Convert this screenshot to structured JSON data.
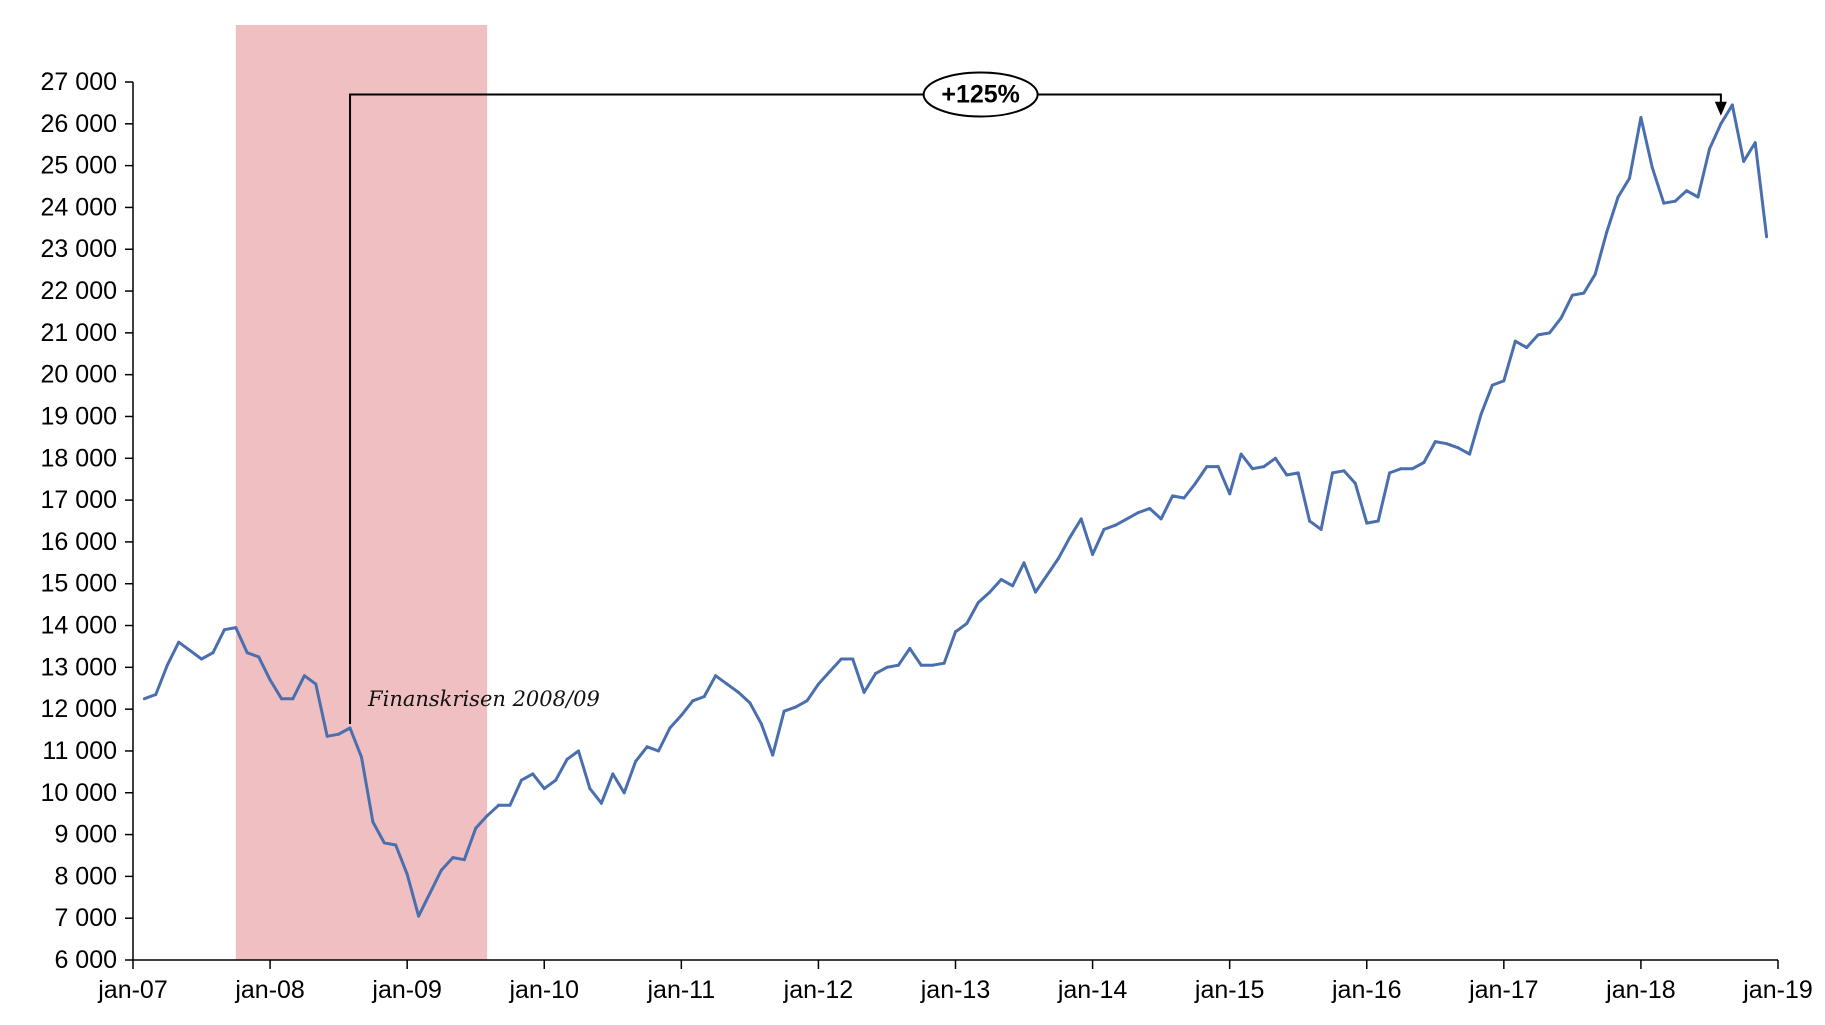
{
  "chart_data": {
    "type": "line",
    "title": "",
    "xlabel": "",
    "ylabel": "",
    "ylim": [
      6000,
      27000
    ],
    "yticks": [
      6000,
      7000,
      8000,
      9000,
      10000,
      11000,
      12000,
      13000,
      14000,
      15000,
      16000,
      17000,
      18000,
      19000,
      20000,
      21000,
      22000,
      23000,
      24000,
      25000,
      26000,
      27000
    ],
    "ytick_labels": [
      "6 000",
      "7 000",
      "8 000",
      "9 000",
      "10 000",
      "11 000",
      "12 000",
      "13 000",
      "14 000",
      "15 000",
      "16 000",
      "17 000",
      "18 000",
      "19 000",
      "20 000",
      "21 000",
      "22 000",
      "23 000",
      "24 000",
      "25 000",
      "26 000",
      "27 000"
    ],
    "xlim": [
      "2007-01",
      "2019-01"
    ],
    "xticks": [
      "2007-01",
      "2008-01",
      "2009-01",
      "2010-01",
      "2011-01",
      "2012-01",
      "2013-01",
      "2014-01",
      "2015-01",
      "2016-01",
      "2017-01",
      "2018-01",
      "2019-01"
    ],
    "xtick_labels": [
      "jan-07",
      "jan-08",
      "jan-09",
      "jan-10",
      "jan-11",
      "jan-12",
      "jan-13",
      "jan-14",
      "jan-15",
      "jan-16",
      "jan-17",
      "jan-18",
      "jan-19"
    ],
    "grid": false,
    "series": [
      {
        "color": "#4a6fae",
        "dates": [
          "2007-02",
          "2007-03",
          "2007-04",
          "2007-05",
          "2007-06",
          "2007-07",
          "2007-08",
          "2007-09",
          "2007-10",
          "2007-11",
          "2007-12",
          "2008-01",
          "2008-02",
          "2008-03",
          "2008-04",
          "2008-05",
          "2008-06",
          "2008-07",
          "2008-08",
          "2008-09",
          "2008-10",
          "2008-11",
          "2008-12",
          "2009-01",
          "2009-02",
          "2009-03",
          "2009-04",
          "2009-05",
          "2009-06",
          "2009-07",
          "2009-08",
          "2009-09",
          "2009-10",
          "2009-11",
          "2009-12",
          "2010-01",
          "2010-02",
          "2010-03",
          "2010-04",
          "2010-05",
          "2010-06",
          "2010-07",
          "2010-08",
          "2010-09",
          "2010-10",
          "2010-11",
          "2010-12",
          "2011-01",
          "2011-02",
          "2011-03",
          "2011-04",
          "2011-05",
          "2011-06",
          "2011-07",
          "2011-08",
          "2011-09",
          "2011-10",
          "2011-11",
          "2011-12",
          "2012-01",
          "2012-02",
          "2012-03",
          "2012-04",
          "2012-05",
          "2012-06",
          "2012-07",
          "2012-08",
          "2012-09",
          "2012-10",
          "2012-11",
          "2012-12",
          "2013-01",
          "2013-02",
          "2013-03",
          "2013-04",
          "2013-05",
          "2013-06",
          "2013-07",
          "2013-08",
          "2013-09",
          "2013-10",
          "2013-11",
          "2013-12",
          "2014-01",
          "2014-02",
          "2014-03",
          "2014-04",
          "2014-05",
          "2014-06",
          "2014-07",
          "2014-08",
          "2014-09",
          "2014-10",
          "2014-11",
          "2014-12",
          "2015-01",
          "2015-02",
          "2015-03",
          "2015-04",
          "2015-05",
          "2015-06",
          "2015-07",
          "2015-08",
          "2015-09",
          "2015-10",
          "2015-11",
          "2015-12",
          "2016-01",
          "2016-02",
          "2016-03",
          "2016-04",
          "2016-05",
          "2016-06",
          "2016-07",
          "2016-08",
          "2016-09",
          "2016-10",
          "2016-11",
          "2016-12",
          "2017-01",
          "2017-02",
          "2017-03",
          "2017-04",
          "2017-05",
          "2017-06",
          "2017-07",
          "2017-08",
          "2017-09",
          "2017-10",
          "2017-11",
          "2017-12",
          "2018-01",
          "2018-02",
          "2018-03",
          "2018-04",
          "2018-05",
          "2018-06",
          "2018-07",
          "2018-08",
          "2018-09",
          "2018-10",
          "2018-11",
          "2018-12"
        ],
        "values": [
          12250,
          12350,
          13050,
          13600,
          13400,
          13200,
          13350,
          13900,
          13950,
          13350,
          13250,
          12700,
          12250,
          12250,
          12800,
          12600,
          11350,
          11400,
          11550,
          10850,
          9300,
          8800,
          8750,
          8050,
          7050,
          7600,
          8150,
          8450,
          8400,
          9150,
          9450,
          9700,
          9700,
          10300,
          10450,
          10100,
          10300,
          10800,
          11000,
          10100,
          9750,
          10450,
          10000,
          10750,
          11100,
          11000,
          11550,
          11850,
          12200,
          12300,
          12800,
          12600,
          12400,
          12150,
          11650,
          10900,
          11950,
          12050,
          12200,
          12600,
          12900,
          13200,
          13200,
          12400,
          12850,
          13000,
          13050,
          13450,
          13050,
          13050,
          13100,
          13850,
          14050,
          14550,
          14800,
          15100,
          14950,
          15500,
          14800,
          15200,
          15600,
          16100,
          16550,
          15700,
          16300,
          16400,
          16550,
          16700,
          16800,
          16550,
          17100,
          17050,
          17400,
          17800,
          17800,
          17150,
          18100,
          17750,
          17800,
          18000,
          17600,
          17650,
          16500,
          16300,
          17650,
          17700,
          17400,
          16450,
          16500,
          17650,
          17750,
          17750,
          17900,
          18400,
          18350,
          18250,
          18100,
          19050,
          19750,
          19850,
          20800,
          20650,
          20950,
          21000,
          21350,
          21900,
          21950,
          22400,
          23400,
          24250,
          24700,
          26150,
          24950,
          24100,
          24150,
          24400,
          24250,
          25400,
          26000,
          26450,
          25100,
          25550,
          23300
        ]
      }
    ],
    "annotations": {
      "shaded_region": {
        "start": "2007-10",
        "end": "2009-08",
        "color": "#efbfc1"
      },
      "crisis_label": "Finanskrisen 2008/09",
      "growth": {
        "from": "2008-08",
        "to": "2018-08",
        "level": 26700,
        "label": "+125%"
      }
    }
  }
}
